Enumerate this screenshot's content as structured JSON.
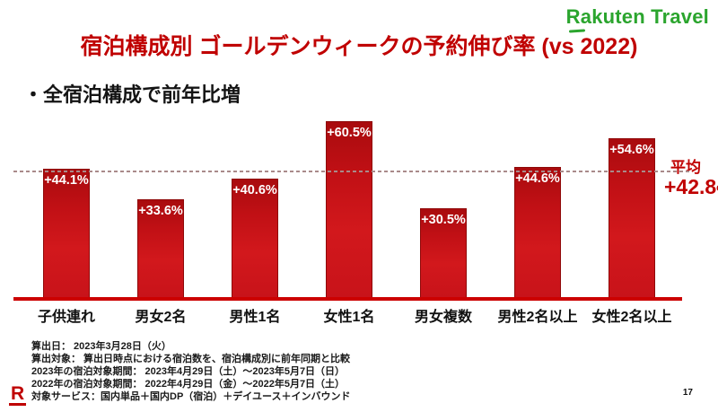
{
  "logo": {
    "text": "Rakuten Travel",
    "color": "#2ba52e"
  },
  "header": {
    "title": "宿泊構成別 ゴールデンウィークの予約伸び率 (vs 2022)",
    "title_color": "#c00000"
  },
  "subtitle": {
    "text": "・全宿泊構成で前年比増"
  },
  "chart_data": {
    "type": "bar",
    "categories": [
      "子供連れ",
      "男女2名",
      "男性1名",
      "女性1名",
      "男女複数",
      "男性2名以上",
      "女性2名以上"
    ],
    "values": [
      44.1,
      33.6,
      40.6,
      60.5,
      30.5,
      44.6,
      54.6
    ],
    "bar_labels": [
      "+44.1%",
      "+33.6%",
      "+40.6%",
      "+60.5%",
      "+30.5%",
      "+44.6%",
      "+54.6%"
    ],
    "unit": "%",
    "average": 42.8,
    "average_title": "平均",
    "average_value_label": "+42.8",
    "average_percent_sign": "%",
    "ylim": [
      0,
      66
    ],
    "grid": false,
    "legend": "none",
    "title": "",
    "xlabel": "",
    "ylabel": "",
    "bar_color_top": "#a90b0e",
    "bar_color_bottom": "#d2181c",
    "bar_label_color": "#ffffff",
    "axis_color": "#cc0000",
    "average_line_color": "#a98a8a",
    "average_text_color": "#c00000"
  },
  "footnotes": {
    "lines": [
      "算出日： 2023年3月28日（火）",
      "算出対象： 算出日時点における宿泊数を、宿泊構成別に前年同期と比較",
      "2023年の宿泊対象期間： 2023年4月29日（土）～2023年5月7日（日）",
      "2022年の宿泊対象期間： 2022年4月29日（金）～2022年5月7日（土）",
      "対象サービス：国内単品＋国内DP（宿泊）＋デイユース＋インバウンド"
    ]
  },
  "r_mark": {
    "letter": "R",
    "color": "#bf0000"
  },
  "page": {
    "number": "17"
  }
}
